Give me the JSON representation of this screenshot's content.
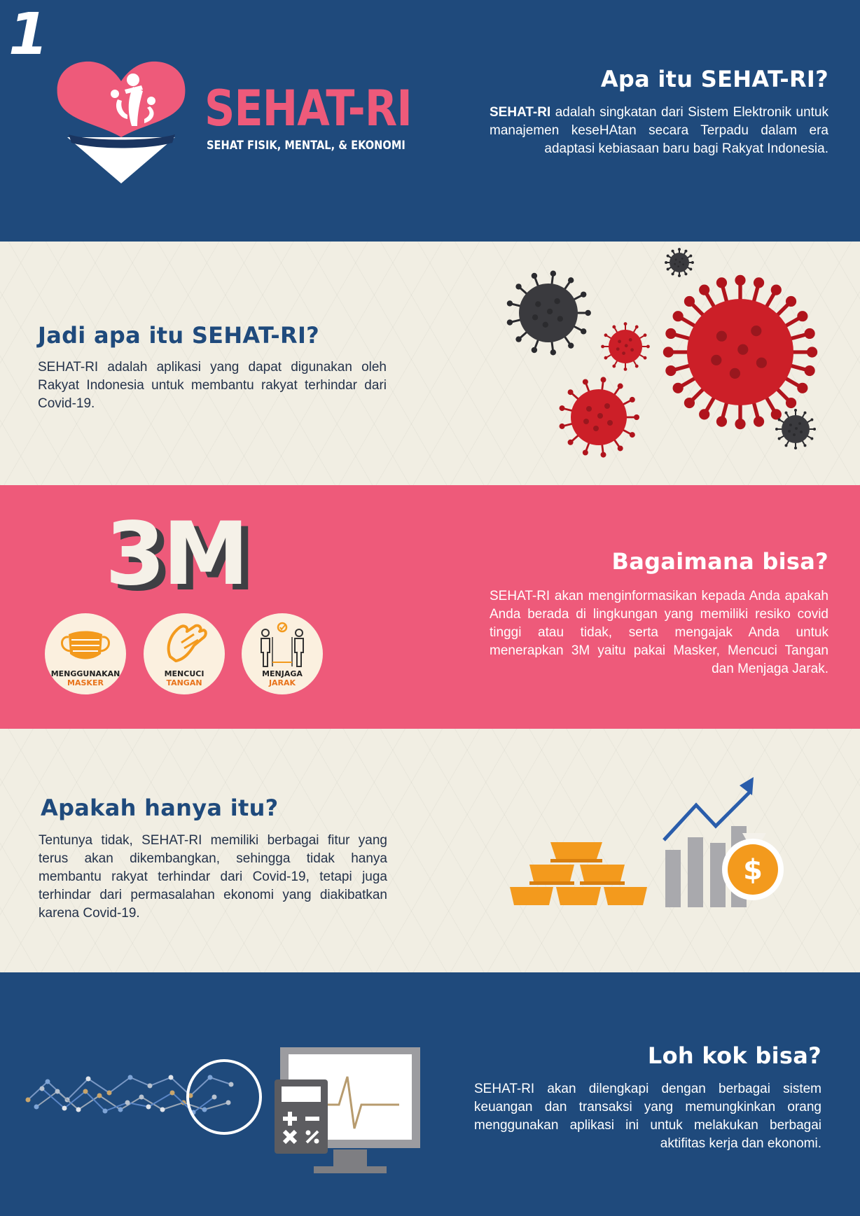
{
  "page_number": "1",
  "logo": {
    "title": "SEHAT-RI",
    "subtitle": "SEHAT FISIK, MENTAL, & EKONOMI"
  },
  "sections": [
    {
      "heading": "Apa itu SEHAT-RI?",
      "body_bold": "SEHAT-RI",
      "body": "adalah singkatan dari Sistem Elektronik untuk manajemen keseHAtan secara Terpadu dalam era adaptasi kebiasaan baru bagi Rakyat Indonesia."
    },
    {
      "heading": "Jadi apa itu SEHAT-RI?",
      "body": "SEHAT-RI adalah aplikasi yang dapat digunakan oleh Rakyat Indonesia untuk membantu rakyat terhindar dari Covid-19."
    },
    {
      "heading": "Bagaimana bisa?",
      "body": "SEHAT-RI akan menginformasikan kepada Anda apakah Anda berada di lingkungan yang memiliki resiko covid tinggi atau tidak, serta mengajak Anda untuk menerapkan 3M yaitu pakai Masker, Mencuci Tangan dan Menjaga Jarak."
    },
    {
      "heading": "Apakah hanya itu?",
      "body": "Tentunya tidak, SEHAT-RI memiliki berbagai fitur yang terus akan dikembangkan, sehingga tidak hanya membantu rakyat terhindar dari Covid-19, tetapi juga terhindar dari permasalahan ekonomi yang diakibatkan karena Covid-19."
    },
    {
      "heading": "Loh kok bisa?",
      "body": "SEHAT-RI akan dilengkapi dengan berbagai sistem keuangan dan transaksi yang memungkinkan orang menggunakan aplikasi ini untuk melakukan berbagai aktifitas kerja dan ekonomi."
    }
  ],
  "three_m": {
    "title": "3M",
    "items": [
      {
        "line1": "MENGGUNAKAN",
        "line2": "MASKER",
        "icon": "mask-icon"
      },
      {
        "line1": "MENCUCI",
        "line2": "TANGAN",
        "icon": "handwash-icon"
      },
      {
        "line1": "MENJAGA",
        "line2": "JARAK",
        "icon": "distance-icon"
      }
    ]
  },
  "colors": {
    "navy": "#1f4a7c",
    "pink": "#ee5a7a",
    "cream": "#f1eee3",
    "orange": "#f39a1d",
    "virus_red": "#cc1f28"
  }
}
